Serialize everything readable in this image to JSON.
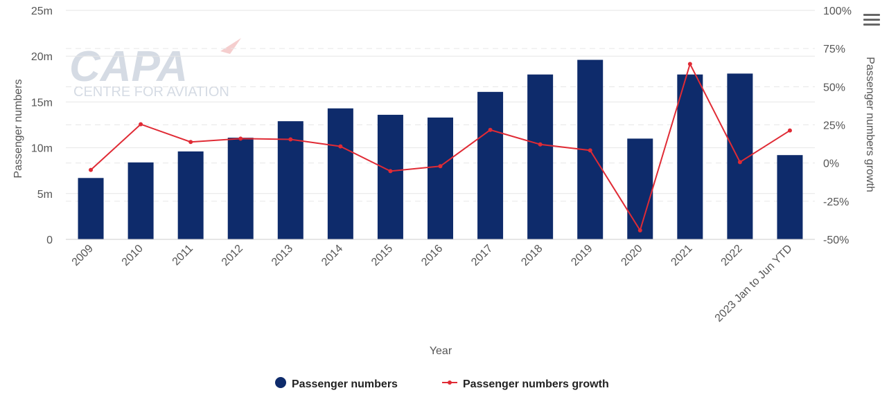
{
  "watermark": {
    "brand": "CAPA",
    "tagline": "CENTRE FOR AVIATION"
  },
  "menu": {
    "icon": "hamburger-menu-icon"
  },
  "chart_data": {
    "type": "bar",
    "categories": [
      "2009",
      "2010",
      "2011",
      "2012",
      "2013",
      "2014",
      "2015",
      "2016",
      "2017",
      "2018",
      "2019",
      "2020",
      "2021",
      "2022",
      "2023 Jan to Jun YTD"
    ],
    "series": [
      {
        "name": "Passenger numbers",
        "type": "bar",
        "axis": "left",
        "color": "#0e2b6b",
        "values": [
          6.7,
          8.4,
          9.6,
          11.1,
          12.9,
          14.3,
          13.6,
          13.3,
          16.1,
          18.0,
          19.6,
          11.0,
          18.0,
          18.1,
          9.2
        ]
      },
      {
        "name": "Passenger numbers growth",
        "type": "line",
        "axis": "right",
        "color": "#e02b35",
        "values": [
          -4.5,
          25.4,
          13.8,
          16.0,
          15.5,
          10.9,
          -5.3,
          -2.1,
          21.7,
          12.2,
          8.3,
          -44.1,
          64.9,
          0.6,
          21.3
        ]
      }
    ],
    "xlabel": "Year",
    "ylabel": "Passenger numbers",
    "ylabel_right": "Passenger numbers growth",
    "ylim": [
      0,
      25
    ],
    "ylim_right": [
      -50,
      100
    ],
    "yticks": [
      "0",
      "5m",
      "10m",
      "15m",
      "20m",
      "25m"
    ],
    "yticks_right": [
      "-50%",
      "-25%",
      "0%",
      "25%",
      "50%",
      "75%",
      "100%"
    ],
    "grid": true,
    "legend_position": "bottom-center"
  }
}
